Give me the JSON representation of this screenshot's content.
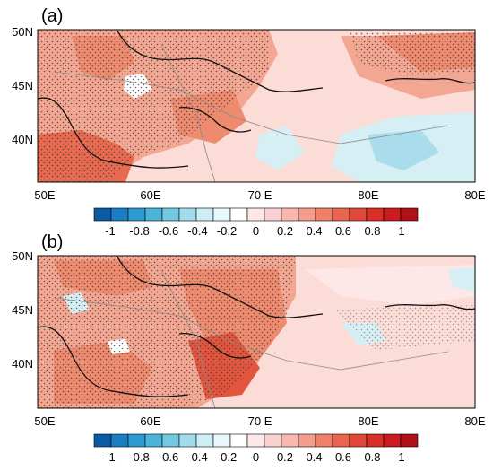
{
  "panels": [
    {
      "label": "(a)",
      "x_ticks": [
        "50E",
        "60E",
        "70 E",
        "80E",
        "80E"
      ],
      "y_ticks": [
        "50N",
        "45N",
        "40N"
      ]
    },
    {
      "label": "(b)",
      "x_ticks": [
        "50E",
        "60E",
        "70 E",
        "80E",
        "80E"
      ],
      "y_ticks": [
        "50N",
        "45N",
        "40N"
      ]
    }
  ],
  "colorbar": {
    "tick_labels": [
      "-1",
      "-0.8",
      "-0.6",
      "-0.4",
      "-0.2",
      "0",
      "0.2",
      "0.4",
      "0.6",
      "0.8",
      "1"
    ],
    "colors": [
      "#0a5aa6",
      "#1b7dc4",
      "#2d9ad0",
      "#4cb3da",
      "#74c9e2",
      "#a2dcec",
      "#cdeef5",
      "#e9f8fb",
      "#ffffff",
      "#fde7e7",
      "#fbd0d0",
      "#f8b8b0",
      "#f59c8c",
      "#f0806a",
      "#ea644e",
      "#e24838",
      "#d92f28",
      "#cc1a1f",
      "#b01018"
    ]
  },
  "map_colors": {
    "positive_weak": "#fbdcd6",
    "positive_mid": "#f6b8a6",
    "positive_strong": "#ec8466",
    "positive_max": "#e2553e",
    "negative_weak": "#d6eff5",
    "negative_mid": "#a9ddec",
    "coast": "#111111",
    "border": "#8a8a8a"
  }
}
